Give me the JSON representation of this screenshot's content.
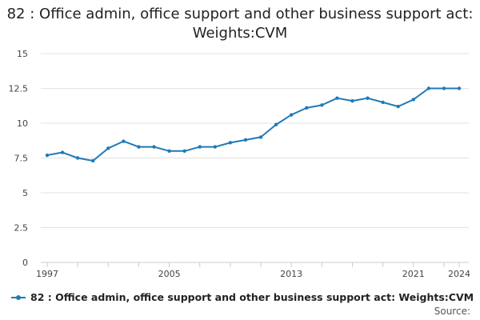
{
  "chart_data": {
    "type": "line",
    "title": "82 : Office admin, office support and other business support act: Weights:CVM",
    "x": [
      "1997",
      "1998",
      "1999",
      "2000",
      "2001",
      "2002",
      "2003",
      "2004",
      "2005",
      "2006",
      "2007",
      "2008",
      "2009",
      "2010",
      "2011",
      "2012",
      "2013",
      "2014",
      "2015",
      "2016",
      "2017",
      "2018",
      "2019",
      "2020",
      "2021",
      "2022",
      "2023",
      "2024"
    ],
    "x_tick_labels": [
      "1997",
      "2005",
      "2013",
      "2021",
      "2024"
    ],
    "series": [
      {
        "name": "82 : Office admin, office support and other business support act: Weights:CVM",
        "color": "#1f7ab8",
        "values": [
          7.7,
          7.9,
          7.5,
          7.3,
          8.2,
          8.7,
          8.3,
          8.3,
          8.0,
          8.0,
          8.3,
          8.3,
          8.6,
          8.8,
          9.0,
          9.9,
          10.6,
          11.1,
          11.3,
          11.8,
          11.6,
          11.8,
          11.5,
          11.2,
          11.7,
          12.5,
          12.5,
          12.5
        ]
      }
    ],
    "ylim": [
      0,
      15
    ],
    "y_ticks": [
      0,
      2.5,
      5,
      7.5,
      10,
      12.5,
      15
    ],
    "y_tick_labels": [
      "0",
      "2.5",
      "5",
      "7.5",
      "10",
      "12.5",
      "15"
    ],
    "grid": true,
    "legend_position": "bottom-left"
  },
  "footer": {
    "source_label": "Source:"
  }
}
